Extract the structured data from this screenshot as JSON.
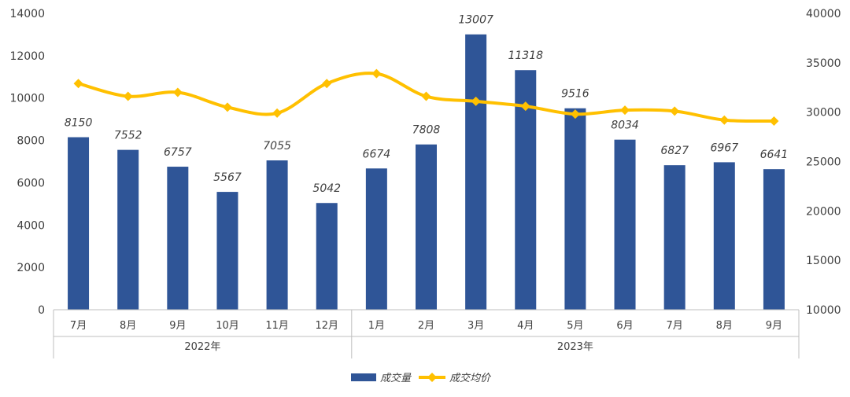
{
  "chart_data": {
    "type": "bar",
    "categories": [
      "7月",
      "8月",
      "9月",
      "10月",
      "11月",
      "12月",
      "1月",
      "2月",
      "3月",
      "4月",
      "5月",
      "6月",
      "7月",
      "8月",
      "9月"
    ],
    "groups": [
      {
        "label": "2022年",
        "count": 6
      },
      {
        "label": "2023年",
        "count": 9
      }
    ],
    "series": [
      {
        "name": "成交量",
        "type": "bar",
        "axis": "left",
        "color": "#2F5597",
        "values": [
          8150,
          7552,
          6757,
          5567,
          7055,
          5042,
          6674,
          7808,
          13007,
          11318,
          9516,
          8034,
          6827,
          6967,
          6641
        ]
      },
      {
        "name": "成交均价",
        "type": "line",
        "axis": "right",
        "color": "#FFC000",
        "values": [
          32900,
          31600,
          32000,
          30500,
          29900,
          32900,
          33900,
          31600,
          31100,
          30600,
          29800,
          30200,
          30100,
          29200,
          29100
        ]
      }
    ],
    "y_left": {
      "min": 0,
      "max": 14000,
      "ticks": [
        0,
        2000,
        4000,
        6000,
        8000,
        10000,
        12000,
        14000
      ]
    },
    "y_right": {
      "min": 10000,
      "max": 40000,
      "ticks": [
        10000,
        15000,
        20000,
        25000,
        30000,
        35000,
        40000
      ]
    },
    "legend_position": "bottom",
    "grid": false
  }
}
